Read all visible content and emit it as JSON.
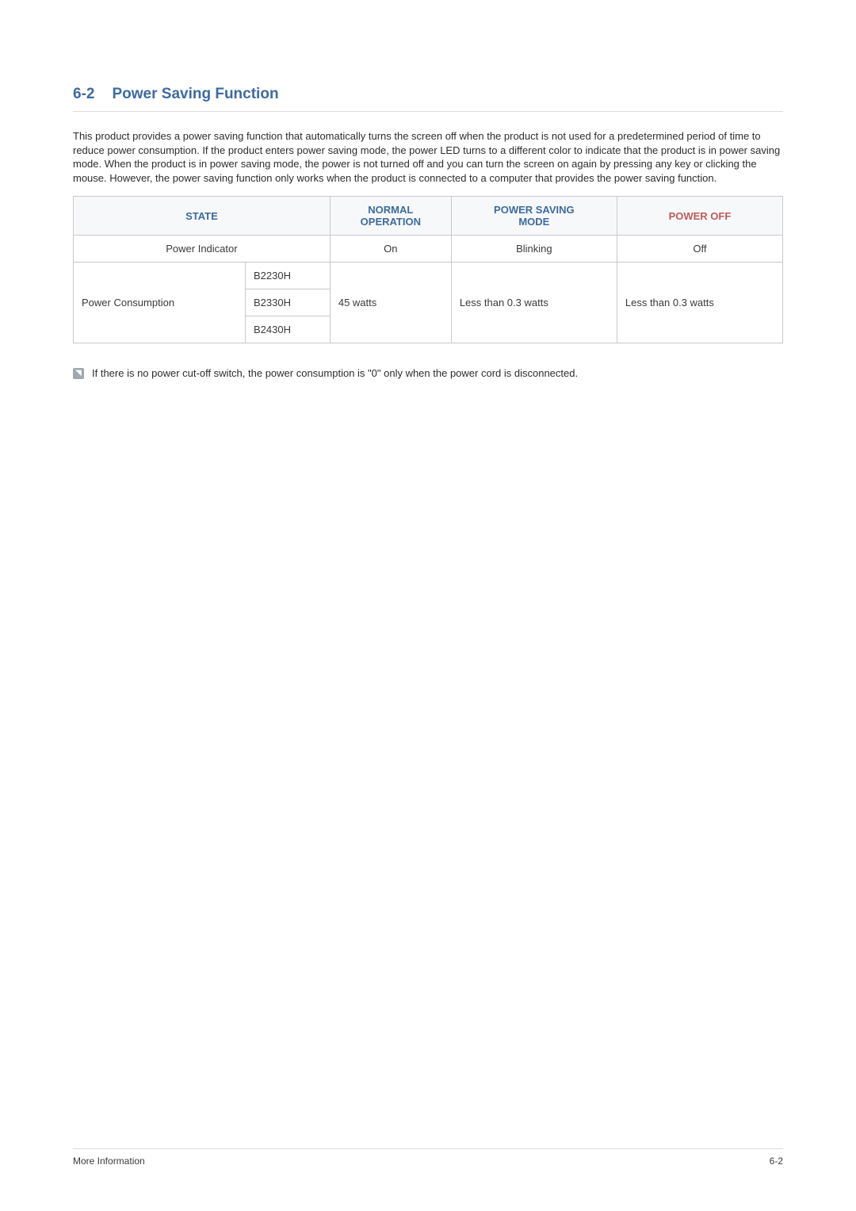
{
  "section": {
    "number": "6-2",
    "title": "Power Saving Function",
    "title_color": "#3e6aa0"
  },
  "paragraph": "This product provides a power saving function that automatically turns the screen off when the product is not used for a predetermined period of time to reduce power consumption. If the product enters power saving mode, the power LED turns to a different color to indicate that the product is in power saving mode. When the product is in power saving mode, the power is not turned off and you can turn the screen on again by pressing any key or clicking the mouse. However, the power saving function only works when the product is connected to a computer that provides the power saving function.",
  "table": {
    "header_bg": "#f7f8fa",
    "border_color": "#c9c9d0",
    "columns": {
      "state": {
        "label": "STATE",
        "color": "#3e6aa0"
      },
      "normal": {
        "label_line1": "NORMAL",
        "label_line2": "OPERATION",
        "color": "#3e6aa0"
      },
      "saving": {
        "label_line1": "POWER SAVING",
        "label_line2": "MODE",
        "color": "#3e6aa0"
      },
      "off": {
        "label": "POWER OFF",
        "color": "#be5a5a"
      }
    },
    "row_indicator": {
      "label": "Power Indicator",
      "normal": "On",
      "saving": "Blinking",
      "off": "Off"
    },
    "row_consumption": {
      "label": "Power Consumption",
      "models": [
        "B2230H",
        "B2330H",
        "B2430H"
      ],
      "normal": "45 watts",
      "saving": "Less than 0.3 watts",
      "off": "Less than 0.3 watts"
    }
  },
  "note": "If there is no power cut-off switch, the power consumption is \"0\" only when the power cord is disconnected.",
  "footer": {
    "left": "More Information",
    "right": "6-2"
  }
}
